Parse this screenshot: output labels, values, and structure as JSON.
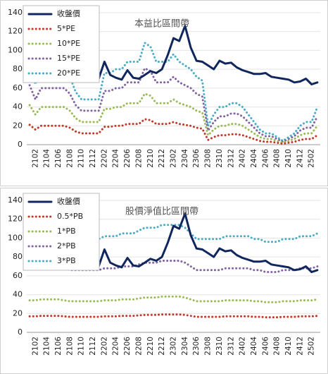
{
  "chart_data": [
    {
      "type": "line",
      "title": "本益比區間帶",
      "categories": [
        null,
        "2102",
        null,
        "2104",
        null,
        "2106",
        null,
        "2108",
        null,
        "2110",
        null,
        "2112",
        null,
        "2202",
        null,
        "2204",
        null,
        "2206",
        null,
        "2208",
        null,
        "2210",
        null,
        "2212",
        null,
        "2302",
        null,
        "2304",
        null,
        "2306",
        null,
        "2308",
        null,
        "2310",
        null,
        "2312",
        null,
        "2402",
        null,
        "2404",
        null,
        "2406",
        null,
        "2408",
        null,
        "2410",
        null,
        "2412",
        null,
        "2502",
        null
      ],
      "ylim": [
        0,
        140
      ],
      "yticks": [
        0,
        20,
        40,
        60,
        80,
        100,
        120,
        140
      ],
      "grid": true,
      "series": [
        {
          "name": "收盤價",
          "color": "#10275e",
          "line_style": "solid",
          "values": [
            68,
            70,
            74,
            71,
            74,
            77,
            88,
            72,
            72,
            70,
            70,
            68,
            70,
            88,
            74,
            71,
            69,
            79,
            71,
            70,
            74,
            78,
            76,
            80,
            95,
            113,
            110,
            126,
            103,
            89,
            88,
            84,
            80,
            89,
            86,
            87,
            82,
            79,
            77,
            75,
            75,
            76,
            72,
            71,
            70,
            69,
            66,
            67,
            70,
            64,
            66
          ]
        },
        {
          "name": "5*PE",
          "color": "#c0392b",
          "line_style": "dotted",
          "values": [
            21,
            16,
            20,
            20,
            20,
            20,
            20,
            18,
            14,
            12,
            12,
            12,
            12,
            19,
            19,
            20,
            20,
            22,
            22,
            22,
            27,
            26,
            22,
            22,
            22,
            24,
            22,
            21,
            20,
            18,
            17,
            5,
            8,
            10,
            10,
            11,
            11,
            10,
            8,
            6,
            4,
            3,
            3,
            2,
            1,
            2,
            3,
            5,
            6,
            6,
            10
          ]
        },
        {
          "name": "10*PE",
          "color": "#9bbb59",
          "line_style": "dotted",
          "values": [
            42,
            32,
            40,
            40,
            40,
            40,
            40,
            36,
            28,
            24,
            24,
            24,
            24,
            38,
            38,
            40,
            40,
            44,
            44,
            44,
            54,
            52,
            44,
            44,
            44,
            48,
            44,
            42,
            40,
            36,
            34,
            10,
            16,
            20,
            20,
            22,
            22,
            20,
            16,
            12,
            8,
            6,
            6,
            4,
            2,
            4,
            6,
            10,
            12,
            12,
            20
          ]
        },
        {
          "name": "15*PE",
          "color": "#8064a2",
          "line_style": "dotted",
          "values": [
            63,
            48,
            60,
            60,
            60,
            60,
            60,
            54,
            42,
            36,
            36,
            36,
            36,
            57,
            57,
            60,
            60,
            66,
            66,
            66,
            81,
            78,
            66,
            66,
            66,
            72,
            66,
            63,
            60,
            54,
            51,
            15,
            24,
            30,
            30,
            33,
            33,
            30,
            24,
            18,
            12,
            9,
            9,
            6,
            3,
            6,
            9,
            15,
            18,
            18,
            30
          ]
        },
        {
          "name": "20*PE",
          "color": "#4bacc6",
          "line_style": "dotted",
          "values": [
            84,
            64,
            80,
            80,
            80,
            80,
            80,
            72,
            56,
            48,
            48,
            48,
            48,
            76,
            76,
            80,
            80,
            88,
            88,
            88,
            108,
            104,
            88,
            88,
            88,
            96,
            88,
            84,
            80,
            72,
            68,
            20,
            32,
            40,
            40,
            44,
            44,
            40,
            32,
            24,
            16,
            12,
            12,
            8,
            4,
            8,
            12,
            20,
            24,
            24,
            40
          ]
        }
      ]
    },
    {
      "type": "line",
      "title": "股價淨值比區間帶",
      "categories": [
        null,
        "2102",
        null,
        "2104",
        null,
        "2106",
        null,
        "2108",
        null,
        "2110",
        null,
        "2112",
        null,
        "2202",
        null,
        "2204",
        null,
        "2206",
        null,
        "2208",
        null,
        "2210",
        null,
        "2212",
        null,
        "2302",
        null,
        "2304",
        null,
        "2306",
        null,
        "2308",
        null,
        "2310",
        null,
        "2312",
        null,
        "2402",
        null,
        "2404",
        null,
        "2406",
        null,
        "2408",
        null,
        "2410",
        null,
        "2412",
        null,
        "2502",
        null
      ],
      "ylim": [
        0,
        140
      ],
      "yticks": [
        0,
        20,
        40,
        60,
        80,
        100,
        120,
        140
      ],
      "grid": true,
      "series": [
        {
          "name": "收盤價",
          "color": "#10275e",
          "line_style": "solid",
          "values": [
            68,
            70,
            74,
            71,
            74,
            77,
            88,
            72,
            72,
            70,
            70,
            68,
            70,
            88,
            74,
            71,
            69,
            79,
            71,
            70,
            74,
            78,
            76,
            80,
            95,
            113,
            110,
            126,
            103,
            89,
            88,
            84,
            80,
            89,
            86,
            87,
            82,
            79,
            77,
            75,
            75,
            76,
            72,
            71,
            70,
            69,
            66,
            67,
            70,
            64,
            66
          ]
        },
        {
          "name": "0.5*PB",
          "color": "#c0392b",
          "line_style": "dotted",
          "values": [
            17,
            17,
            17.5,
            17.5,
            17.5,
            17.5,
            17,
            16.5,
            16.5,
            16.5,
            16.5,
            16.5,
            16.5,
            17,
            17,
            17,
            17.5,
            17.5,
            17.5,
            18,
            18.5,
            18.5,
            18.5,
            19,
            19,
            19,
            19,
            18.5,
            17.5,
            16.5,
            16.5,
            16.5,
            16.5,
            16.5,
            17,
            17,
            17,
            17,
            17,
            16.5,
            16.5,
            16,
            16,
            16,
            16.5,
            16.5,
            16.5,
            17,
            17,
            17,
            17.5
          ]
        },
        {
          "name": "1*PB",
          "color": "#9bbb59",
          "line_style": "dotted",
          "values": [
            34,
            34,
            35,
            35,
            35,
            35,
            34,
            33,
            33,
            33,
            33,
            33,
            33,
            34,
            34,
            34,
            35,
            35,
            35,
            36,
            37,
            37,
            37,
            38,
            38,
            38,
            38,
            37,
            35,
            33,
            33,
            33,
            33,
            33,
            34,
            34,
            34,
            34,
            34,
            33,
            33,
            32,
            32,
            32,
            33,
            33,
            33,
            34,
            34,
            34,
            35
          ]
        },
        {
          "name": "2*PB",
          "color": "#8064a2",
          "line_style": "dotted",
          "values": [
            68,
            68,
            70,
            70,
            70,
            70,
            68,
            66,
            66,
            66,
            66,
            66,
            66,
            68,
            68,
            68,
            70,
            70,
            70,
            72,
            74,
            74,
            74,
            76,
            76,
            76,
            76,
            74,
            70,
            66,
            66,
            66,
            66,
            66,
            68,
            68,
            68,
            68,
            68,
            66,
            66,
            64,
            64,
            64,
            66,
            66,
            66,
            68,
            68,
            68,
            70
          ]
        },
        {
          "name": "3*PB",
          "color": "#4bacc6",
          "line_style": "dotted",
          "values": [
            102,
            102,
            105,
            105,
            105,
            105,
            102,
            99,
            99,
            99,
            99,
            99,
            99,
            102,
            102,
            102,
            105,
            105,
            105,
            108,
            111,
            111,
            111,
            114,
            114,
            114,
            114,
            111,
            105,
            99,
            99,
            99,
            99,
            99,
            102,
            102,
            102,
            102,
            102,
            99,
            99,
            96,
            96,
            96,
            99,
            99,
            99,
            102,
            102,
            102,
            105
          ]
        }
      ]
    }
  ]
}
